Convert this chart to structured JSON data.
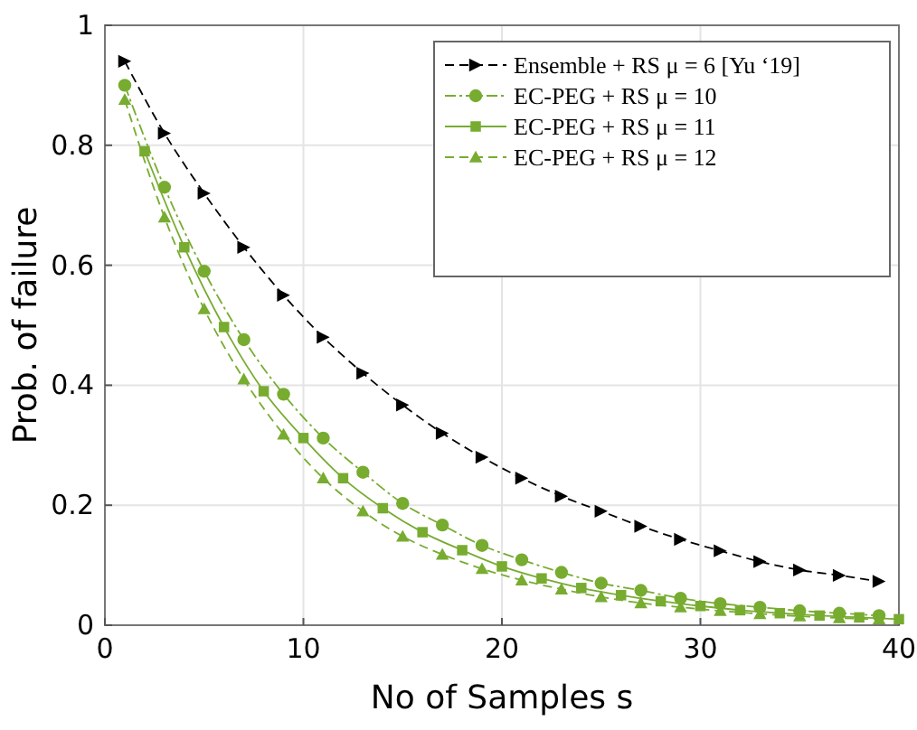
{
  "chart_data": {
    "type": "line",
    "xlabel": "No of Samples s",
    "ylabel": "Prob. of failure",
    "xlim": [
      0,
      40
    ],
    "ylim": [
      0,
      1
    ],
    "xticks": [
      0,
      10,
      20,
      30,
      40
    ],
    "yticks": [
      0,
      0.2,
      0.4,
      0.6,
      0.8,
      1
    ],
    "grid": true,
    "legend": "top right",
    "series": [
      {
        "name": "Ensemble + RS μ = 6 [Yu ‘19]",
        "color": "#000000",
        "marker": "triangle",
        "line_style": "dashed",
        "x": [
          1,
          3,
          5,
          7,
          9,
          11,
          13,
          15,
          17,
          19,
          21,
          23,
          25,
          27,
          29,
          31,
          33,
          35,
          37,
          39
        ],
        "values": [
          0.94,
          0.82,
          0.72,
          0.63,
          0.55,
          0.48,
          0.42,
          0.367,
          0.32,
          0.28,
          0.245,
          0.215,
          0.19,
          0.165,
          0.143,
          0.124,
          0.106,
          0.092,
          0.083,
          0.073
        ]
      },
      {
        "name": "EC-PEG + RS μ = 10",
        "color": "#77ac30",
        "marker": "circle",
        "line_style": "dashdot",
        "x": [
          1,
          3,
          5,
          7,
          9,
          11,
          13,
          15,
          17,
          19,
          21,
          23,
          25,
          27,
          29,
          31,
          33,
          35,
          37,
          39
        ],
        "values": [
          0.9,
          0.73,
          0.59,
          0.476,
          0.385,
          0.312,
          0.255,
          0.203,
          0.167,
          0.133,
          0.109,
          0.088,
          0.07,
          0.058,
          0.045,
          0.036,
          0.03,
          0.024,
          0.02,
          0.016
        ]
      },
      {
        "name": "EC-PEG + RS μ = 11",
        "color": "#77ac30",
        "marker": "square",
        "line_style": "solid",
        "x": [
          2,
          4,
          6,
          8,
          10,
          12,
          14,
          16,
          18,
          20,
          22,
          24,
          26,
          28,
          30,
          32,
          34,
          36,
          38,
          40
        ],
        "values": [
          0.79,
          0.63,
          0.497,
          0.39,
          0.312,
          0.245,
          0.195,
          0.155,
          0.125,
          0.098,
          0.078,
          0.062,
          0.05,
          0.04,
          0.032,
          0.025,
          0.02,
          0.016,
          0.013,
          0.01
        ]
      },
      {
        "name": "EC-PEG + RS μ = 12",
        "color": "#77ac30",
        "marker": "triangle",
        "line_style": "dashed",
        "x": [
          1,
          3,
          5,
          7,
          9,
          11,
          13,
          15,
          17,
          19,
          21,
          23,
          25,
          27,
          29,
          31,
          33,
          35,
          37,
          39
        ],
        "values": [
          0.876,
          0.68,
          0.527,
          0.41,
          0.318,
          0.245,
          0.19,
          0.148,
          0.118,
          0.094,
          0.075,
          0.06,
          0.047,
          0.037,
          0.03,
          0.024,
          0.019,
          0.015,
          0.012,
          0.01
        ]
      }
    ]
  }
}
